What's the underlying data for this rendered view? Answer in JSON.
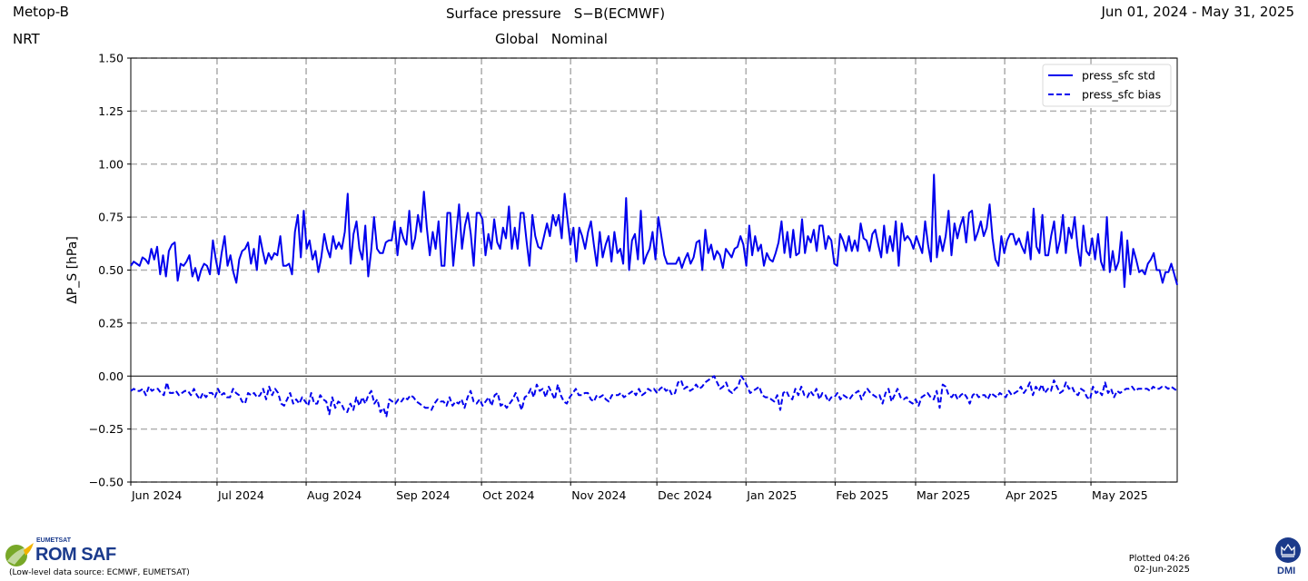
{
  "header": {
    "satellite": "Metop-B",
    "mode": "NRT",
    "title": "Surface pressure",
    "title_suffix": "S−B(ECMWF)",
    "region": "Global",
    "quality": "Nominal",
    "date_range": "Jun 01, 2024 - May 31, 2025"
  },
  "footer": {
    "org_small": "EUMETSAT",
    "org_big": "ROM SAF",
    "source_note": "(Low-level data source: ECMWF, EUMETSAT)",
    "plotted_line1": "Plotted 04:26",
    "plotted_line2": "02-Jun-2025",
    "dmi_label": "DMI"
  },
  "colors": {
    "series": "#0000ee",
    "grid": "#b0b0b0",
    "brand_green": "#78a828",
    "brand_blue": "#1a3a8c",
    "dmi_blue": "#1b3a8a"
  },
  "chart_data": {
    "type": "line",
    "ylabel": "ΔP_S  [hPa]",
    "xlabel": "",
    "ylim": [
      -0.5,
      1.5
    ],
    "yticks": [
      1.5,
      1.25,
      1.0,
      0.75,
      0.5,
      0.25,
      0.0,
      -0.25,
      -0.5
    ],
    "ytick_labels": [
      "1.50",
      "1.25",
      "1.00",
      "0.75",
      "0.50",
      "0.25",
      "0.00",
      "−0.25",
      "−0.50"
    ],
    "x_start": "2024-06-01",
    "x_end": "2025-05-31",
    "x_month_ticks": [
      "2024-06-01",
      "2024-07-01",
      "2024-08-01",
      "2024-09-01",
      "2024-10-01",
      "2024-11-01",
      "2024-12-01",
      "2025-01-01",
      "2025-02-01",
      "2025-03-01",
      "2025-04-01",
      "2025-05-01"
    ],
    "x_tick_labels": [
      "Jun 2024",
      "Jul 2024",
      "Aug 2024",
      "Sep 2024",
      "Oct 2024",
      "Nov 2024",
      "Dec 2024",
      "Jan 2025",
      "Feb 2025",
      "Mar 2025",
      "Apr 2025",
      "May 2025"
    ],
    "grid": true,
    "legend_position": "top-right",
    "series": [
      {
        "name": "press_sfc std",
        "style": "solid",
        "values": [
          0.52,
          0.54,
          0.53,
          0.52,
          0.56,
          0.55,
          0.53,
          0.6,
          0.55,
          0.61,
          0.48,
          0.57,
          0.47,
          0.59,
          0.62,
          0.63,
          0.45,
          0.53,
          0.52,
          0.54,
          0.57,
          0.47,
          0.51,
          0.45,
          0.5,
          0.53,
          0.52,
          0.48,
          0.64,
          0.55,
          0.48,
          0.58,
          0.66,
          0.52,
          0.57,
          0.49,
          0.44,
          0.55,
          0.59,
          0.6,
          0.63,
          0.53,
          0.6,
          0.5,
          0.66,
          0.59,
          0.53,
          0.58,
          0.55,
          0.58,
          0.57,
          0.66,
          0.52,
          0.52,
          0.53,
          0.48,
          0.68,
          0.76,
          0.56,
          0.78,
          0.6,
          0.64,
          0.55,
          0.59,
          0.49,
          0.56,
          0.67,
          0.6,
          0.56,
          0.66,
          0.6,
          0.63,
          0.6,
          0.68,
          0.86,
          0.53,
          0.67,
          0.73,
          0.6,
          0.55,
          0.71,
          0.47,
          0.59,
          0.75,
          0.6,
          0.58,
          0.58,
          0.63,
          0.64,
          0.64,
          0.73,
          0.57,
          0.7,
          0.65,
          0.62,
          0.78,
          0.6,
          0.65,
          0.76,
          0.68,
          0.87,
          0.7,
          0.57,
          0.68,
          0.6,
          0.73,
          0.52,
          0.52,
          0.77,
          0.77,
          0.52,
          0.67,
          0.81,
          0.6,
          0.71,
          0.77,
          0.67,
          0.52,
          0.77,
          0.77,
          0.74,
          0.57,
          0.67,
          0.6,
          0.74,
          0.63,
          0.6,
          0.7,
          0.65,
          0.8,
          0.6,
          0.7,
          0.6,
          0.77,
          0.77,
          0.64,
          0.52,
          0.76,
          0.66,
          0.61,
          0.6,
          0.66,
          0.72,
          0.66,
          0.76,
          0.71,
          0.76,
          0.65,
          0.86,
          0.74,
          0.62,
          0.7,
          0.54,
          0.7,
          0.66,
          0.6,
          0.68,
          0.73,
          0.62,
          0.52,
          0.68,
          0.56,
          0.62,
          0.66,
          0.54,
          0.68,
          0.58,
          0.6,
          0.53,
          0.84,
          0.5,
          0.64,
          0.67,
          0.55,
          0.78,
          0.53,
          0.57,
          0.6,
          0.68,
          0.55,
          0.75,
          0.66,
          0.57,
          0.53,
          0.53,
          0.53,
          0.53,
          0.56,
          0.51,
          0.55,
          0.58,
          0.53,
          0.56,
          0.63,
          0.64,
          0.5,
          0.69,
          0.58,
          0.62,
          0.55,
          0.59,
          0.57,
          0.51,
          0.6,
          0.58,
          0.56,
          0.6,
          0.61,
          0.66,
          0.62,
          0.52,
          0.71,
          0.57,
          0.66,
          0.59,
          0.62,
          0.52,
          0.58,
          0.55,
          0.54,
          0.58,
          0.63,
          0.73,
          0.58,
          0.68,
          0.56,
          0.69,
          0.57,
          0.58,
          0.74,
          0.58,
          0.66,
          0.63,
          0.69,
          0.59,
          0.71,
          0.71,
          0.6,
          0.66,
          0.64,
          0.53,
          0.52,
          0.67,
          0.64,
          0.59,
          0.66,
          0.59,
          0.64,
          0.59,
          0.72,
          0.65,
          0.64,
          0.59,
          0.67,
          0.69,
          0.62,
          0.56,
          0.71,
          0.58,
          0.66,
          0.59,
          0.73,
          0.52,
          0.72,
          0.64,
          0.66,
          0.64,
          0.6,
          0.66,
          0.62,
          0.58,
          0.73,
          0.62,
          0.54,
          0.95,
          0.56,
          0.66,
          0.59,
          0.66,
          0.78,
          0.57,
          0.72,
          0.65,
          0.71,
          0.75,
          0.63,
          0.77,
          0.78,
          0.64,
          0.68,
          0.73,
          0.66,
          0.7,
          0.81,
          0.65,
          0.55,
          0.52,
          0.66,
          0.58,
          0.64,
          0.67,
          0.67,
          0.62,
          0.65,
          0.61,
          0.58,
          0.68,
          0.55,
          0.79,
          0.61,
          0.58,
          0.76,
          0.57,
          0.57,
          0.66,
          0.73,
          0.58,
          0.64,
          0.76,
          0.58,
          0.7,
          0.65,
          0.75,
          0.61,
          0.52,
          0.71,
          0.59,
          0.57,
          0.65,
          0.55,
          0.67,
          0.54,
          0.5,
          0.75,
          0.49,
          0.59,
          0.5,
          0.54,
          0.68,
          0.42,
          0.64,
          0.48,
          0.6,
          0.55,
          0.49,
          0.5,
          0.48,
          0.53,
          0.55,
          0.58,
          0.5,
          0.5,
          0.44,
          0.49,
          0.49,
          0.53,
          0.48,
          0.43
        ]
      },
      {
        "name": "press_sfc bias",
        "style": "dashed",
        "values": [
          -0.07,
          -0.06,
          -0.07,
          -0.07,
          -0.06,
          -0.09,
          -0.05,
          -0.07,
          -0.06,
          -0.06,
          -0.08,
          -0.09,
          -0.03,
          -0.08,
          -0.08,
          -0.07,
          -0.09,
          -0.08,
          -0.07,
          -0.07,
          -0.09,
          -0.06,
          -0.09,
          -0.11,
          -0.08,
          -0.1,
          -0.08,
          -0.08,
          -0.1,
          -0.06,
          -0.09,
          -0.08,
          -0.1,
          -0.1,
          -0.06,
          -0.08,
          -0.09,
          -0.12,
          -0.13,
          -0.08,
          -0.09,
          -0.08,
          -0.1,
          -0.09,
          -0.06,
          -0.11,
          -0.05,
          -0.09,
          -0.06,
          -0.08,
          -0.13,
          -0.14,
          -0.11,
          -0.08,
          -0.13,
          -0.11,
          -0.13,
          -0.1,
          -0.12,
          -0.14,
          -0.08,
          -0.13,
          -0.13,
          -0.09,
          -0.11,
          -0.12,
          -0.18,
          -0.1,
          -0.15,
          -0.12,
          -0.13,
          -0.16,
          -0.17,
          -0.13,
          -0.16,
          -0.1,
          -0.14,
          -0.1,
          -0.13,
          -0.09,
          -0.07,
          -0.13,
          -0.11,
          -0.17,
          -0.15,
          -0.19,
          -0.11,
          -0.12,
          -0.13,
          -0.11,
          -0.12,
          -0.1,
          -0.11,
          -0.09,
          -0.1,
          -0.12,
          -0.13,
          -0.14,
          -0.15,
          -0.15,
          -0.16,
          -0.13,
          -0.11,
          -0.12,
          -0.12,
          -0.14,
          -0.1,
          -0.14,
          -0.12,
          -0.13,
          -0.11,
          -0.15,
          -0.1,
          -0.07,
          -0.12,
          -0.13,
          -0.11,
          -0.14,
          -0.12,
          -0.1,
          -0.14,
          -0.09,
          -0.08,
          -0.14,
          -0.13,
          -0.15,
          -0.13,
          -0.11,
          -0.08,
          -0.12,
          -0.16,
          -0.1,
          -0.09,
          -0.06,
          -0.1,
          -0.04,
          -0.07,
          -0.06,
          -0.1,
          -0.05,
          -0.08,
          -0.11,
          -0.04,
          -0.09,
          -0.12,
          -0.13,
          -0.1,
          -0.08,
          -0.06,
          -0.09,
          -0.09,
          -0.08,
          -0.08,
          -0.11,
          -0.12,
          -0.09,
          -0.1,
          -0.09,
          -0.11,
          -0.12,
          -0.09,
          -0.09,
          -0.09,
          -0.08,
          -0.1,
          -0.09,
          -0.08,
          -0.07,
          -0.09,
          -0.06,
          -0.09,
          -0.08,
          -0.06,
          -0.07,
          -0.06,
          -0.08,
          -0.06,
          -0.05,
          -0.07,
          -0.06,
          -0.09,
          -0.08,
          -0.03,
          -0.02,
          -0.06,
          -0.05,
          -0.07,
          -0.06,
          -0.04,
          -0.06,
          -0.05,
          -0.03,
          -0.02,
          -0.01,
          0.0,
          -0.03,
          -0.06,
          -0.05,
          -0.03,
          -0.07,
          -0.08,
          -0.06,
          -0.05,
          0.0,
          -0.02,
          -0.05,
          -0.08,
          -0.07,
          -0.06,
          -0.05,
          -0.09,
          -0.1,
          -0.1,
          -0.11,
          -0.12,
          -0.09,
          -0.16,
          -0.08,
          -0.07,
          -0.1,
          -0.11,
          -0.06,
          -0.09,
          -0.05,
          -0.09,
          -0.1,
          -0.07,
          -0.09,
          -0.06,
          -0.11,
          -0.08,
          -0.09,
          -0.12,
          -0.1,
          -0.1,
          -0.08,
          -0.11,
          -0.09,
          -0.1,
          -0.11,
          -0.09,
          -0.08,
          -0.07,
          -0.11,
          -0.08,
          -0.06,
          -0.08,
          -0.09,
          -0.1,
          -0.09,
          -0.13,
          -0.08,
          -0.06,
          -0.12,
          -0.09,
          -0.06,
          -0.1,
          -0.11,
          -0.1,
          -0.12,
          -0.13,
          -0.11,
          -0.14,
          -0.1,
          -0.09,
          -0.08,
          -0.1,
          -0.11,
          -0.07,
          -0.15,
          -0.04,
          -0.05,
          -0.09,
          -0.1,
          -0.08,
          -0.11,
          -0.09,
          -0.08,
          -0.1,
          -0.13,
          -0.09,
          -0.08,
          -0.1,
          -0.09,
          -0.09,
          -0.11,
          -0.08,
          -0.09,
          -0.1,
          -0.08,
          -0.09,
          -0.1,
          -0.07,
          -0.09,
          -0.08,
          -0.07,
          -0.05,
          -0.08,
          -0.06,
          -0.03,
          -0.09,
          -0.05,
          -0.07,
          -0.04,
          -0.08,
          -0.06,
          -0.07,
          -0.02,
          -0.05,
          -0.08,
          -0.07,
          -0.03,
          -0.06,
          -0.05,
          -0.08,
          -0.09,
          -0.06,
          -0.07,
          -0.1,
          -0.11,
          -0.05,
          -0.08,
          -0.07,
          -0.09,
          -0.03,
          -0.08,
          -0.06,
          -0.1,
          -0.07,
          -0.08,
          -0.07,
          -0.06,
          -0.06,
          -0.05,
          -0.07,
          -0.06,
          -0.06,
          -0.06,
          -0.06,
          -0.07,
          -0.05,
          -0.06,
          -0.06,
          -0.05,
          -0.05,
          -0.06,
          -0.05,
          -0.06,
          -0.07
        ]
      }
    ]
  }
}
